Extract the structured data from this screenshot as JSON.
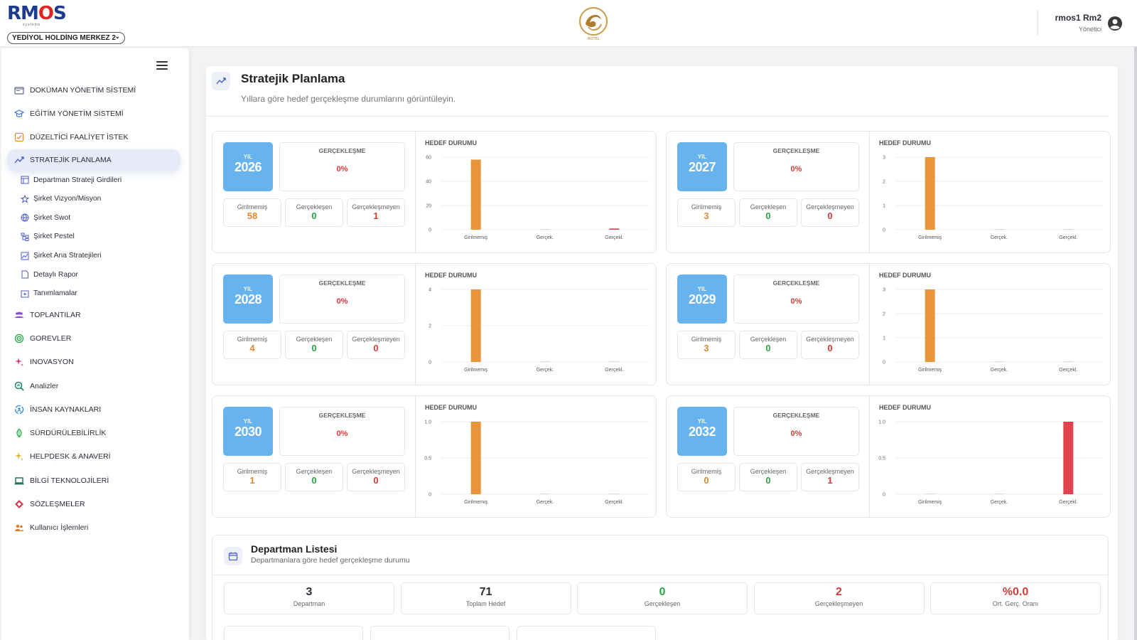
{
  "header": {
    "brand": "RMOS",
    "brand_sub": "systems",
    "company": "YEDİYOL HOLDİNG MERKEZ 2",
    "hotel_logo_text": "HOTEL",
    "user_name": "rmos1 Rm2",
    "user_role": "Yönetici"
  },
  "sidebar": {
    "items": [
      {
        "label": "DOKÜMAN YÖNETİM SİSTEMİ",
        "icon": "folder-icon",
        "color": "#5a6a8a"
      },
      {
        "label": "EĞİTİM YÖNETİM SİSTEMİ",
        "icon": "graduation-cap-icon",
        "color": "#3a6fd8"
      },
      {
        "label": "DÜZELTİCİ FAALİYET İSTEK",
        "icon": "checkbox-icon",
        "color": "#e0952c"
      },
      {
        "label": "STRATEJİK PLANLAMA",
        "icon": "trend-icon",
        "color": "#4a5cc8"
      }
    ],
    "sub_items": [
      {
        "label": "Departman Strateji Girdileri",
        "icon": "table-icon"
      },
      {
        "label": "Şirket Vizyon/Misyon",
        "icon": "star-icon"
      },
      {
        "label": "Şirket Swot",
        "icon": "globe-icon"
      },
      {
        "label": "Şirket Pestel",
        "icon": "sitemap-icon"
      },
      {
        "label": "Şirket Ana Stratejileri",
        "icon": "chart-image-icon"
      },
      {
        "label": "Detaylı Rapor",
        "icon": "document-icon"
      },
      {
        "label": "Tanımlamalar",
        "icon": "add-box-icon"
      }
    ],
    "items2": [
      {
        "label": "TOPLANTILAR",
        "icon": "people-icon",
        "color": "#8a4bd8"
      },
      {
        "label": "GOREVLER",
        "icon": "target-icon",
        "color": "#28a745"
      },
      {
        "label": "INOVASYON",
        "icon": "sparkle-icon",
        "color": "#e0347a"
      },
      {
        "label": "Analizler",
        "icon": "analytics-icon",
        "color": "#1a8a6a"
      },
      {
        "label": "İNSAN KAYNAKLARI",
        "icon": "hr-icon",
        "color": "#2a8ad8"
      },
      {
        "label": "SÜRDÜRÜLEBİLİRLİK",
        "icon": "leaf-icon",
        "color": "#28a745"
      },
      {
        "label": "HELPDESK & ANAVERİ",
        "icon": "sparkle-gold-icon",
        "color": "#e0b020"
      },
      {
        "label": "BİLGİ TEKNOLOJİLERİ",
        "icon": "laptop-icon",
        "color": "#1a6a4a"
      },
      {
        "label": "SÖZLEŞMELER",
        "icon": "diamond-icon",
        "color": "#d8344a"
      },
      {
        "label": "Kullanıcı İşlemleri",
        "icon": "users-icon",
        "color": "#e07a2c"
      }
    ]
  },
  "page": {
    "title": "Stratejik Planlama",
    "subtitle": "Yıllara göre hedef gerçekleşme durumlarını görüntüleyin."
  },
  "labels": {
    "year": "YIL",
    "gerceklesme": "GERÇEKLEŞME",
    "girilmemis": "Girilmemiş",
    "gerceklesen": "Gerçekleşen",
    "gerceklesmeyen": "Gerçekleşmeyen",
    "chart_title": "HEDEF DURUMU"
  },
  "years": [
    {
      "year": "2026",
      "rate": "0%",
      "girilmemis": "58",
      "gerceklesen": "0",
      "gerceklesmeyen": "1"
    },
    {
      "year": "2027",
      "rate": "0%",
      "girilmemis": "3",
      "gerceklesen": "0",
      "gerceklesmeyen": "0"
    },
    {
      "year": "2028",
      "rate": "0%",
      "girilmemis": "4",
      "gerceklesen": "0",
      "gerceklesmeyen": "0"
    },
    {
      "year": "2029",
      "rate": "0%",
      "girilmemis": "3",
      "gerceklesen": "0",
      "gerceklesmeyen": "0"
    },
    {
      "year": "2030",
      "rate": "0%",
      "girilmemis": "1",
      "gerceklesen": "0",
      "gerceklesmeyen": "0"
    },
    {
      "year": "2032",
      "rate": "0%",
      "girilmemis": "0",
      "gerceklesen": "0",
      "gerceklesmeyen": "1"
    }
  ],
  "chart_data": [
    {
      "type": "bar",
      "title": "HEDEF DURUMU",
      "categories": [
        "Girilmemiş",
        "Gerçek.",
        "Gerçekl."
      ],
      "values": [
        58,
        0,
        1
      ],
      "ylim": [
        0,
        60
      ],
      "yticks": [
        "0",
        "20",
        "40",
        "60"
      ],
      "colors": [
        "#e8953a",
        "#28a745",
        "#e0454f"
      ]
    },
    {
      "type": "bar",
      "title": "HEDEF DURUMU",
      "categories": [
        "Girilmemiş",
        "Gerçek.",
        "Gerçekl."
      ],
      "values": [
        3,
        0,
        0
      ],
      "ylim": [
        0,
        3
      ],
      "yticks": [
        "0",
        "1",
        "2",
        "3"
      ],
      "colors": [
        "#e8953a",
        "#28a745",
        "#e0454f"
      ]
    },
    {
      "type": "bar",
      "title": "HEDEF DURUMU",
      "categories": [
        "Girilmemiş",
        "Gerçek.",
        "Gerçekl."
      ],
      "values": [
        4,
        0,
        0
      ],
      "ylim": [
        0,
        4
      ],
      "yticks": [
        "0",
        "2",
        "4"
      ],
      "colors": [
        "#e8953a",
        "#28a745",
        "#e0454f"
      ]
    },
    {
      "type": "bar",
      "title": "HEDEF DURUMU",
      "categories": [
        "Girilmemiş",
        "Gerçek.",
        "Gerçekl."
      ],
      "values": [
        3,
        0,
        0
      ],
      "ylim": [
        0,
        3
      ],
      "yticks": [
        "0",
        "1",
        "2",
        "3"
      ],
      "colors": [
        "#e8953a",
        "#28a745",
        "#e0454f"
      ]
    },
    {
      "type": "bar",
      "title": "HEDEF DURUMU",
      "categories": [
        "Girilmemiş",
        "Gerçek.",
        "Gerçekl."
      ],
      "values": [
        1,
        0,
        0
      ],
      "ylim": [
        0,
        1
      ],
      "yticks": [
        "0",
        "0.5",
        "1.0"
      ],
      "colors": [
        "#e8953a",
        "#28a745",
        "#e0454f"
      ]
    },
    {
      "type": "bar",
      "title": "HEDEF DURUMU",
      "categories": [
        "Girilmemiş",
        "Gerçek.",
        "Gerçekl."
      ],
      "values": [
        0,
        0,
        1
      ],
      "ylim": [
        0,
        1
      ],
      "yticks": [
        "0",
        "0.5",
        "1.0"
      ],
      "colors": [
        "#e8953a",
        "#28a745",
        "#e0454f"
      ]
    }
  ],
  "departman": {
    "title": "Departman Listesi",
    "subtitle": "Departmanlara göre hedef gerçekleşme durumu",
    "stats": [
      {
        "value": "3",
        "label": "Departman",
        "color": "#2a2f3a"
      },
      {
        "value": "71",
        "label": "Toplam Hedef",
        "color": "#2a2f3a"
      },
      {
        "value": "0",
        "label": "Gerçekleşen",
        "color": "#28a745"
      },
      {
        "value": "2",
        "label": "Gerçekleşmeyen",
        "color": "#d83a3a"
      },
      {
        "value": "%0.0",
        "label": "Ort. Gerç. Oranı",
        "color": "#d83a3a"
      }
    ]
  }
}
